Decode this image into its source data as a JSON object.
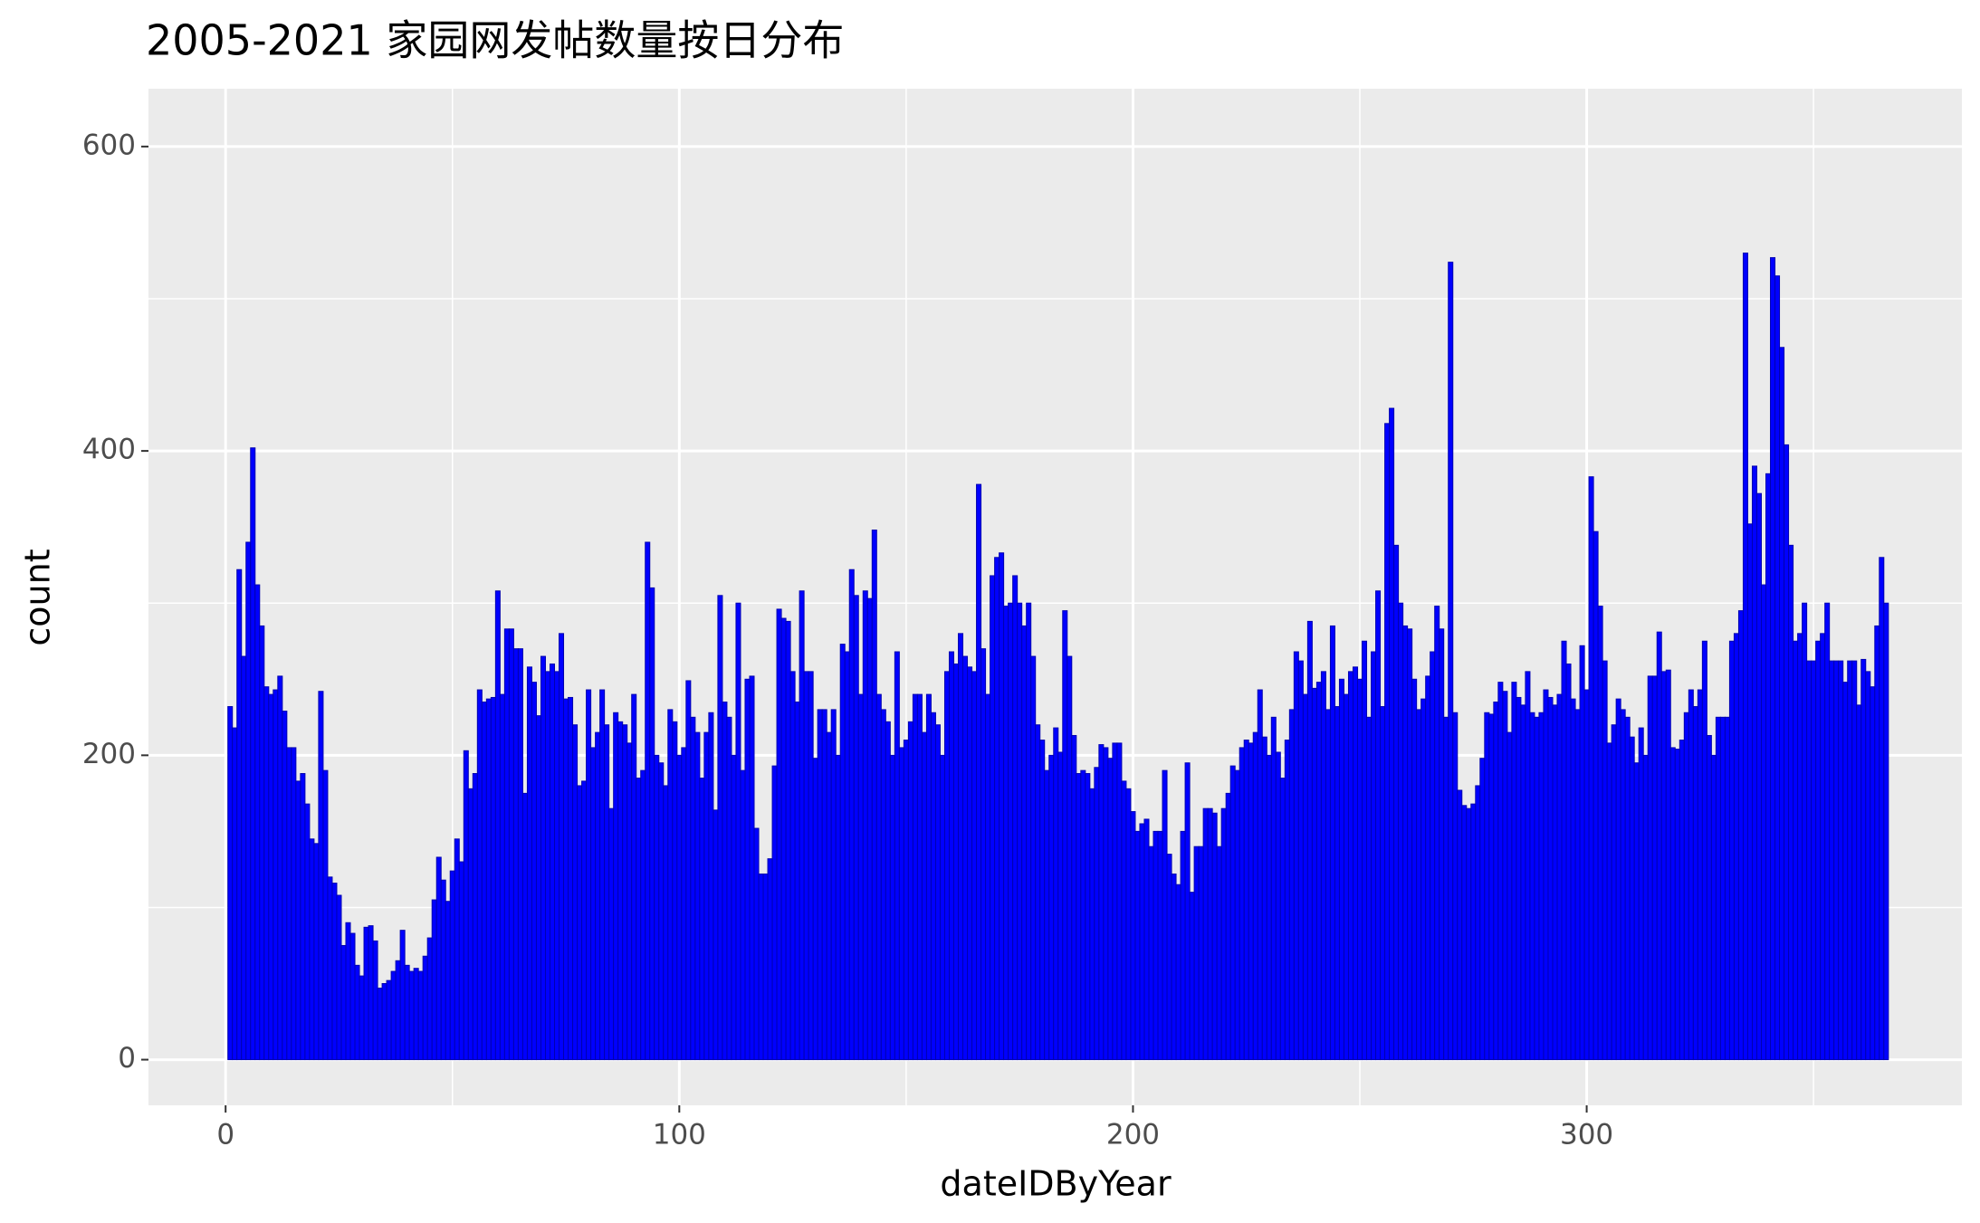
{
  "chart_data": {
    "type": "histogram",
    "title": "2005-2021 家园网发帖数量按日分布",
    "x_label": "dateIDByYear",
    "y_label": "count",
    "color": "#0000ff",
    "edge_color": "#0000b0",
    "grid": true,
    "xlim": [
      -17,
      382.7
    ],
    "ylim": [
      -30,
      638
    ],
    "xticks": [
      0,
      100,
      200,
      300
    ],
    "yticks": [
      0,
      200,
      400,
      600
    ],
    "xminor": [
      50,
      150,
      250,
      350
    ],
    "yminor": [
      100,
      300,
      500
    ],
    "bins": [
      0.5,
      1.5,
      2.5,
      3.5,
      4.5,
      5.5,
      6.5,
      7.5,
      8.5,
      9.5,
      10.5,
      11.5,
      12.5,
      13.5,
      14.5,
      15.5,
      16.5,
      17.5,
      18.5,
      19.5,
      20.5,
      21.5,
      22.5,
      23.5,
      24.5,
      25.5,
      26.5,
      27.5,
      28.5,
      29.5,
      30.5,
      31.5,
      32.5,
      33.5,
      34.5,
      35.5,
      36.5,
      37.5,
      38.5,
      39.5,
      40.5,
      41.5,
      42.5,
      43.5,
      44.5,
      45.5,
      46.5,
      47.5,
      48.5,
      49.5,
      50.5,
      51.5,
      52.5,
      53.5,
      54.5,
      55.5,
      56.5,
      57.5,
      58.5,
      59.5,
      60.5,
      61.5,
      62.5,
      63.5,
      64.5,
      65.5,
      66.5,
      67.5,
      68.5,
      69.5,
      70.5,
      71.5,
      72.5,
      73.5,
      74.5,
      75.5,
      76.5,
      77.5,
      78.5,
      79.5,
      80.5,
      81.5,
      82.5,
      83.5,
      84.5,
      85.5,
      86.5,
      87.5,
      88.5,
      89.5,
      90.5,
      91.5,
      92.5,
      93.5,
      94.5,
      95.5,
      96.5,
      97.5,
      98.5,
      99.5,
      100.5,
      101.5,
      102.5,
      103.5,
      104.5,
      105.5,
      106.5,
      107.5,
      108.5,
      109.5,
      110.5,
      111.5,
      112.5,
      113.5,
      114.5,
      115.5,
      116.5,
      117.5,
      118.5,
      119.5,
      120.5,
      121.5,
      122.5,
      123.5,
      124.5,
      125.5,
      126.5,
      127.5,
      128.5,
      129.5,
      130.5,
      131.5,
      132.5,
      133.5,
      134.5,
      135.5,
      136.5,
      137.5,
      138.5,
      139.5,
      140.5,
      141.5,
      142.5,
      143.5,
      144.5,
      145.5,
      146.5,
      147.5,
      148.5,
      149.5,
      150.5,
      151.5,
      152.5,
      153.5,
      154.5,
      155.5,
      156.5,
      157.5,
      158.5,
      159.5,
      160.5,
      161.5,
      162.5,
      163.5,
      164.5,
      165.5,
      166.5,
      167.5,
      168.5,
      169.5,
      170.5,
      171.5,
      172.5,
      173.5,
      174.5,
      175.5,
      176.5,
      177.5,
      178.5,
      179.5,
      180.5,
      181.5,
      182.5,
      183.5,
      184.5,
      185.5,
      186.5,
      187.5,
      188.5,
      189.5,
      190.5,
      191.5,
      192.5,
      193.5,
      194.5,
      195.5,
      196.5,
      197.5,
      198.5,
      199.5,
      200.5,
      201.5,
      202.5,
      203.5,
      204.5,
      205.5,
      206.5,
      207.5,
      208.5,
      209.5,
      210.5,
      211.5,
      212.5,
      213.5,
      214.5,
      215.5,
      216.5,
      217.5,
      218.5,
      219.5,
      220.5,
      221.5,
      222.5,
      223.5,
      224.5,
      225.5,
      226.5,
      227.5,
      228.5,
      229.5,
      230.5,
      231.5,
      232.5,
      233.5,
      234.5,
      235.5,
      236.5,
      237.5,
      238.5,
      239.5,
      240.5,
      241.5,
      242.5,
      243.5,
      244.5,
      245.5,
      246.5,
      247.5,
      248.5,
      249.5,
      250.5,
      251.5,
      252.5,
      253.5,
      254.5,
      255.5,
      256.5,
      257.5,
      258.5,
      259.5,
      260.5,
      261.5,
      262.5,
      263.5,
      264.5,
      265.5,
      266.5,
      267.5,
      268.5,
      269.5,
      270.5,
      271.5,
      272.5,
      273.5,
      274.5,
      275.5,
      276.5,
      277.5,
      278.5,
      279.5,
      280.5,
      281.5,
      282.5,
      283.5,
      284.5,
      285.5,
      286.5,
      287.5,
      288.5,
      289.5,
      290.5,
      291.5,
      292.5,
      293.5,
      294.5,
      295.5,
      296.5,
      297.5,
      298.5,
      299.5,
      300.5,
      301.5,
      302.5,
      303.5,
      304.5,
      305.5,
      306.5,
      307.5,
      308.5,
      309.5,
      310.5,
      311.5,
      312.5,
      313.5,
      314.5,
      315.5,
      316.5,
      317.5,
      318.5,
      319.5,
      320.5,
      321.5,
      322.5,
      323.5,
      324.5,
      325.5,
      326.5,
      327.5,
      328.5,
      329.5,
      330.5,
      331.5,
      332.5,
      333.5,
      334.5,
      335.5,
      336.5,
      337.5,
      338.5,
      339.5,
      340.5,
      341.5,
      342.5,
      343.5,
      344.5,
      345.5,
      346.5,
      347.5,
      348.5,
      349.5,
      350.5,
      351.5,
      352.5,
      353.5,
      354.5,
      355.5,
      356.5,
      357.5,
      358.5,
      359.5,
      360.5,
      361.5,
      362.5,
      363.5,
      364.5,
      365.5,
      366.5
    ],
    "values": [
      232,
      218,
      322,
      265,
      340,
      402,
      312,
      285,
      245,
      240,
      243,
      252,
      229,
      205,
      205,
      183,
      188,
      168,
      145,
      142,
      242,
      190,
      120,
      116,
      108,
      75,
      90,
      83,
      62,
      55,
      87,
      88,
      78,
      47,
      50,
      52,
      58,
      65,
      85,
      62,
      58,
      60,
      58,
      68,
      80,
      105,
      133,
      118,
      104,
      124,
      145,
      130,
      203,
      178,
      188,
      243,
      235,
      237,
      238,
      308,
      240,
      283,
      283,
      270,
      270,
      175,
      258,
      248,
      226,
      265,
      255,
      260,
      255,
      280,
      237,
      238,
      220,
      180,
      183,
      243,
      205,
      215,
      243,
      220,
      165,
      228,
      222,
      220,
      208,
      240,
      185,
      190,
      340,
      310,
      200,
      195,
      180,
      230,
      222,
      200,
      205,
      249,
      225,
      215,
      185,
      215,
      228,
      164,
      305,
      235,
      225,
      200,
      300,
      190,
      250,
      252,
      152,
      122,
      122,
      132,
      193,
      296,
      290,
      288,
      255,
      235,
      308,
      255,
      255,
      198,
      230,
      230,
      215,
      230,
      200,
      273,
      268,
      322,
      305,
      240,
      308,
      303,
      348,
      240,
      230,
      222,
      200,
      268,
      205,
      210,
      222,
      240,
      240,
      215,
      240,
      228,
      220,
      200,
      255,
      268,
      260,
      280,
      265,
      258,
      255,
      378,
      270,
      240,
      318,
      330,
      333,
      298,
      300,
      318,
      300,
      285,
      300,
      265,
      220,
      210,
      190,
      200,
      218,
      202,
      295,
      265,
      213,
      188,
      190,
      188,
      178,
      192,
      207,
      205,
      198,
      208,
      208,
      183,
      178,
      163,
      150,
      155,
      158,
      140,
      150,
      150,
      190,
      135,
      122,
      115,
      150,
      195,
      110,
      140,
      140,
      165,
      165,
      162,
      140,
      165,
      175,
      193,
      190,
      205,
      210,
      208,
      215,
      243,
      212,
      200,
      225,
      202,
      185,
      210,
      230,
      268,
      262,
      240,
      288,
      244,
      248,
      255,
      230,
      285,
      232,
      250,
      240,
      255,
      258,
      250,
      275,
      225,
      268,
      308,
      232,
      418,
      428,
      338,
      300,
      285,
      283,
      250,
      230,
      237,
      252,
      268,
      298,
      283,
      225,
      524,
      228,
      177,
      167,
      165,
      168,
      180,
      198,
      228,
      227,
      235,
      248,
      242,
      215,
      248,
      238,
      233,
      255,
      228,
      225,
      228,
      243,
      238,
      233,
      240,
      275,
      260,
      237,
      230,
      272,
      243,
      383,
      347,
      298,
      262,
      208,
      220,
      237,
      230,
      225,
      212,
      195,
      218,
      200,
      252,
      252,
      281,
      255,
      256,
      205,
      204,
      210,
      228,
      243,
      232,
      243,
      275,
      213,
      200,
      225,
      225,
      225,
      275,
      280,
      295,
      530,
      352,
      390,
      372,
      312,
      385,
      527,
      515,
      468,
      404,
      338,
      275,
      280,
      300,
      262,
      262,
      275,
      280,
      300,
      262,
      262,
      262,
      248,
      262,
      262,
      233,
      263,
      255,
      245,
      285,
      330,
      300
    ]
  }
}
